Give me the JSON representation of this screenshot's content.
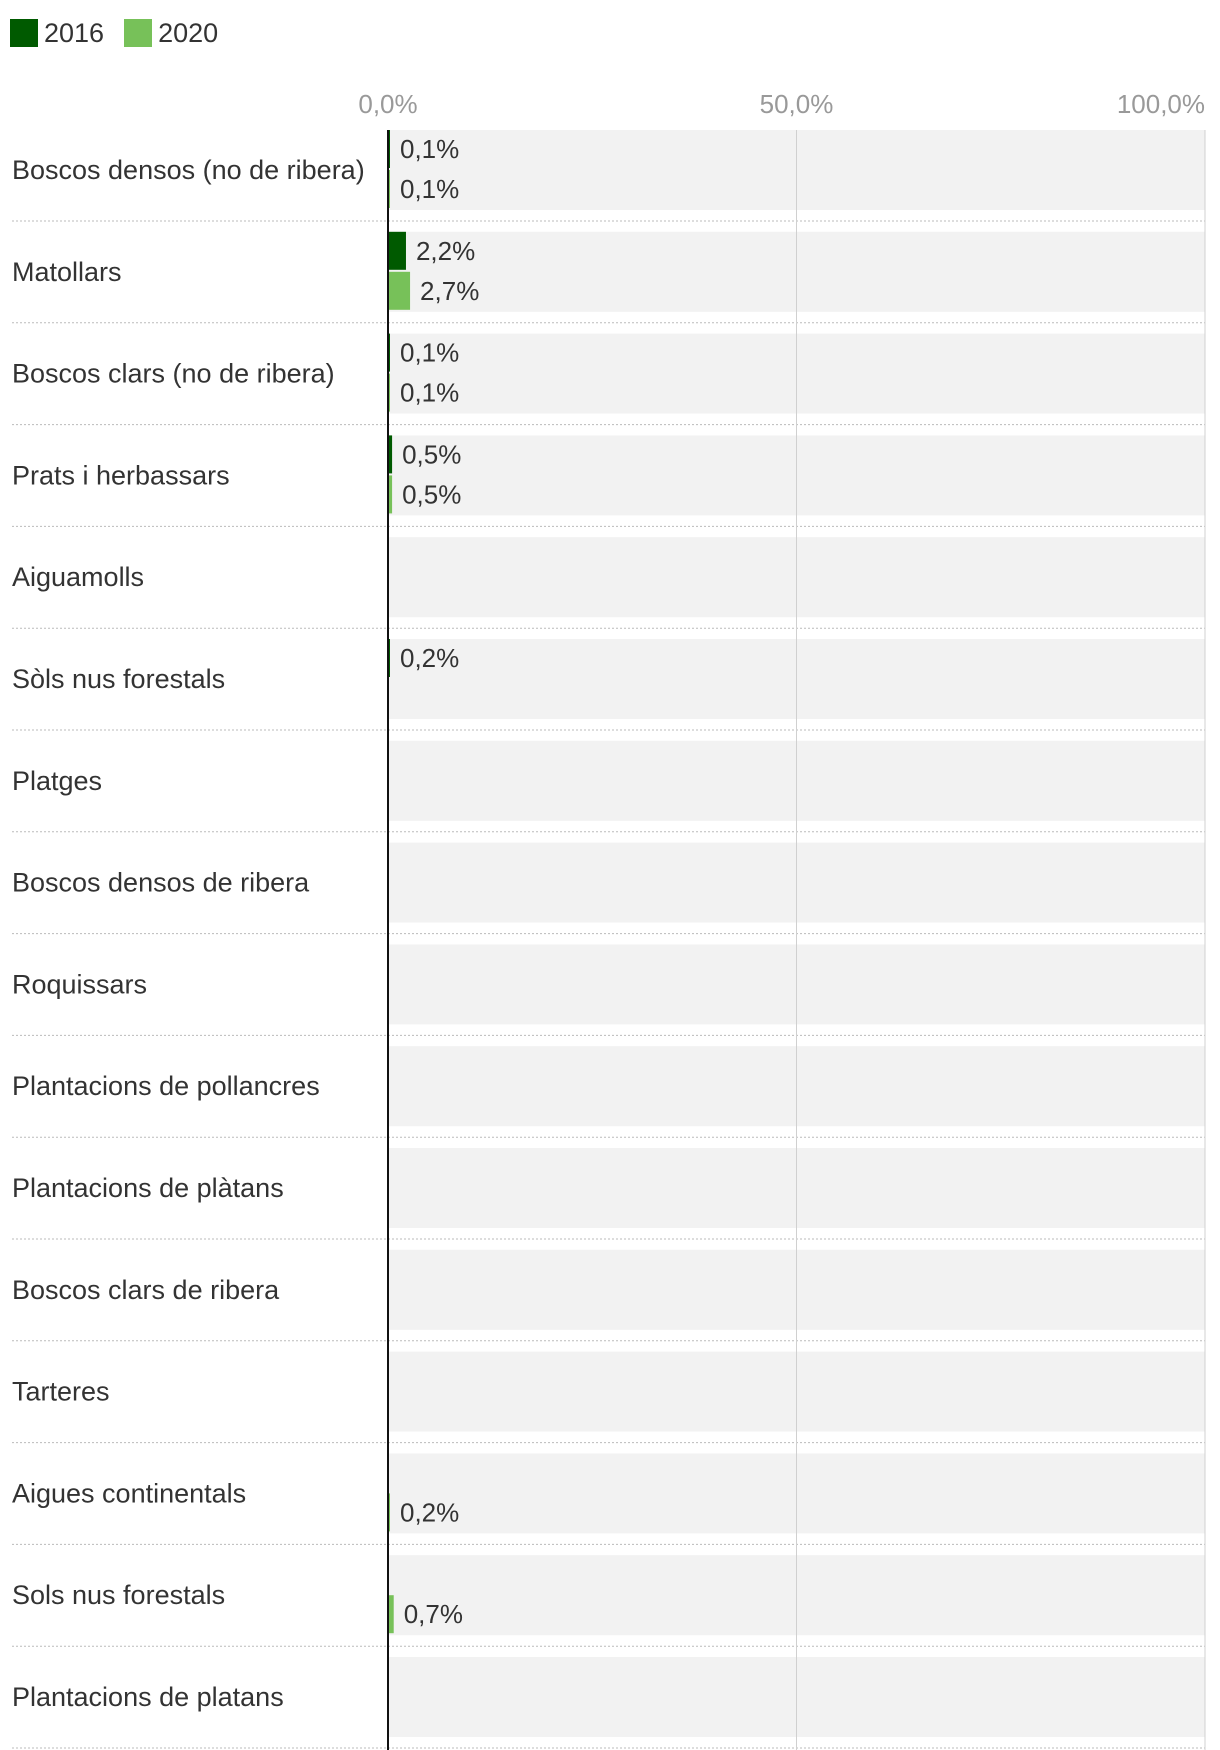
{
  "legend": [
    {
      "label": "2016",
      "color": "#005a00"
    },
    {
      "label": "2020",
      "color": "#77c159"
    }
  ],
  "chart_data": {
    "type": "bar",
    "orientation": "horizontal",
    "categories": [
      "Boscos densos (no de ribera)",
      "Matollars",
      "Boscos clars (no de ribera)",
      "Prats i herbassars",
      "Aiguamolls",
      "Sòls nus forestals",
      "Platges",
      "Boscos densos de ribera",
      "Roquissars",
      "Plantacions de pollancres",
      "Plantacions de plàtans",
      "Boscos clars de ribera",
      "Tarteres",
      "Aigues continentals",
      "Sols nus forestals",
      "Plantacions de platans"
    ],
    "series": [
      {
        "name": "2016",
        "color": "#005a00",
        "values": [
          0.1,
          2.2,
          0.1,
          0.5,
          null,
          0.2,
          null,
          null,
          null,
          null,
          null,
          null,
          null,
          null,
          null,
          null
        ],
        "labels": [
          "0,1%",
          "2,2%",
          "0,1%",
          "0,5%",
          "",
          "0,2%",
          "",
          "",
          "",
          "",
          "",
          "",
          "",
          "",
          "",
          ""
        ]
      },
      {
        "name": "2020",
        "color": "#77c159",
        "values": [
          0.1,
          2.7,
          0.1,
          0.5,
          null,
          null,
          null,
          null,
          null,
          null,
          null,
          null,
          null,
          0.2,
          0.7,
          null
        ],
        "labels": [
          "0,1%",
          "2,7%",
          "0,1%",
          "0,5%",
          "",
          "",
          "",
          "",
          "",
          "",
          "",
          "",
          "",
          "0,2%",
          "0,7%",
          ""
        ]
      }
    ],
    "xlim": [
      0,
      100
    ],
    "ticks": [
      0,
      50,
      100
    ],
    "tick_labels": [
      "0,0%",
      "50,0%",
      "100,0%"
    ],
    "grid": true,
    "legend_position": "top-left",
    "background_color": "#f2f2f2"
  }
}
